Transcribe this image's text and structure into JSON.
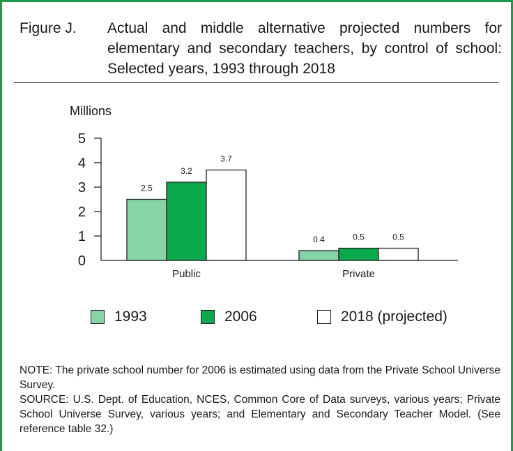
{
  "figure": {
    "label": "Figure J.",
    "title": "Actual and middle alternative projected numbers for elementary and secondary teachers, by control of school: Selected years, 1993 through 2018"
  },
  "chart_data": {
    "type": "bar",
    "ylabel": "Millions",
    "ylim": [
      0,
      5
    ],
    "yticks": [
      0,
      1,
      2,
      3,
      4,
      5
    ],
    "categories": [
      "Public",
      "Private"
    ],
    "series": [
      {
        "name": "1993",
        "values": [
          2.5,
          0.4
        ],
        "labels": [
          "2.5",
          "0.4"
        ],
        "color": "#86d4a8"
      },
      {
        "name": "2006",
        "values": [
          3.2,
          0.5
        ],
        "labels": [
          "3.2",
          "0.5"
        ],
        "color": "#0aa94c"
      },
      {
        "name": "2018 (projected)",
        "values": [
          3.7,
          0.5
        ],
        "labels": [
          "3.7",
          "0.5"
        ],
        "color": "#ffffff"
      }
    ],
    "legend": "bottom",
    "grid": false
  },
  "notes": {
    "note": "NOTE: The private school number for 2006 is estimated using data from the Private School Universe Survey.",
    "source": "SOURCE: U.S. Dept. of Education, NCES, Common Core of Data surveys, various years; Private School Universe Survey, various years; and Elementary and Secondary Teacher Model. (See reference table 32.)"
  },
  "colors": {
    "border": "#1f9a49"
  }
}
